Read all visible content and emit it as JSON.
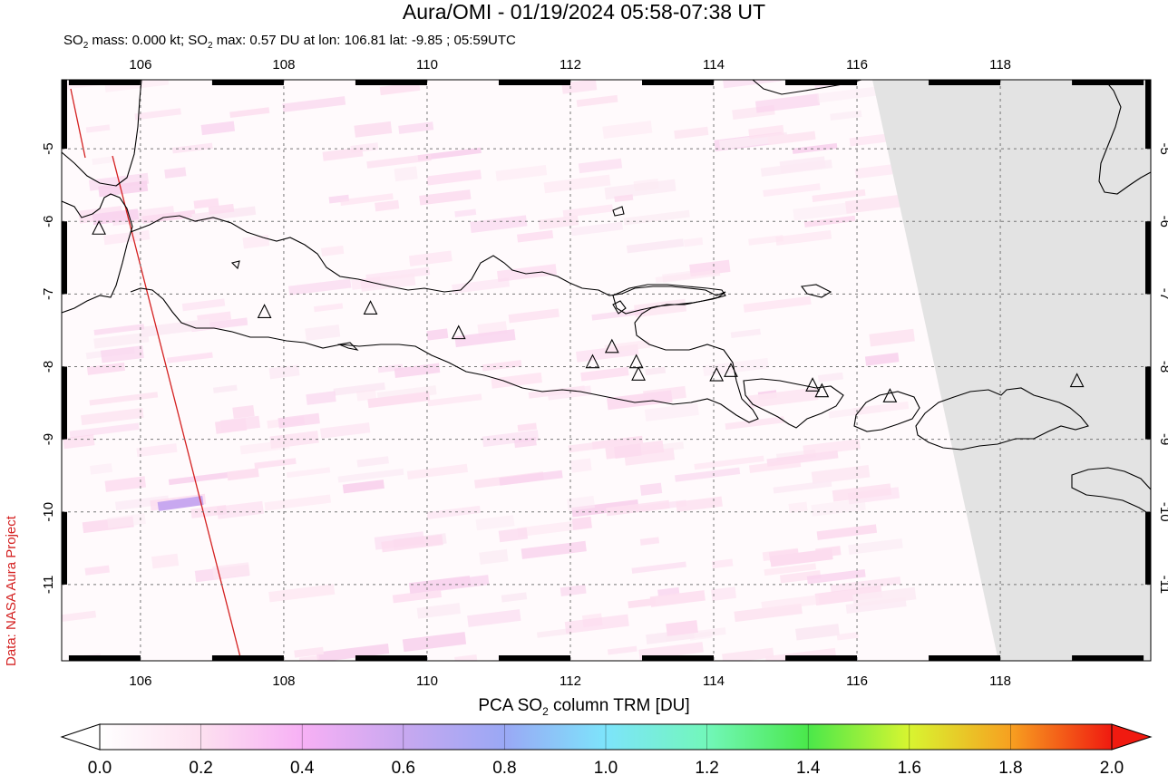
{
  "header": {
    "title": "Aura/OMI - 01/19/2024 05:58-07:38 UT",
    "subtitle_mass_prefix": "SO",
    "subtitle_mass_sub": "2",
    "subtitle_mass_text": " mass: 0.000 kt; SO",
    "subtitle_max_sub": "2",
    "subtitle_max_text": " max: 0.57 DU at lon: 106.81 lat: -9.85 ; 05:59UTC"
  },
  "credit": "Data: NASA Aura Project",
  "colorbar": {
    "title_prefix": "PCA SO",
    "title_sub": "2",
    "title_suffix": " column TRM [DU]",
    "ticks": [
      "0.0",
      "0.2",
      "0.4",
      "0.6",
      "0.8",
      "1.0",
      "1.2",
      "1.4",
      "1.6",
      "1.8",
      "2.0"
    ],
    "range": [
      0.0,
      2.0
    ],
    "colors": [
      "#ffffff",
      "#fde0f0",
      "#f7b0f5",
      "#c8a8f0",
      "#9aa8f5",
      "#7de4fb",
      "#72f7ba",
      "#4ae84a",
      "#d8f530",
      "#f7a020",
      "#f01a10"
    ]
  },
  "map": {
    "lon_ticks": [
      "106",
      "108",
      "110",
      "112",
      "114",
      "116",
      "118"
    ],
    "lon_values": [
      106,
      108,
      110,
      112,
      114,
      116,
      118
    ],
    "lat_ticks": [
      "-5",
      "-6",
      "-7",
      "-8",
      "-9",
      "-10",
      "-11"
    ],
    "lat_values": [
      -5,
      -6,
      -7,
      -8,
      -9,
      -10,
      -11
    ],
    "lon_range": [
      104.9,
      120.1
    ],
    "lat_range": [
      -12.05,
      -4.05
    ],
    "volcanoes": [
      {
        "lon": 105.42,
        "lat": -6.1
      },
      {
        "lon": 107.73,
        "lat": -7.25
      },
      {
        "lon": 109.21,
        "lat": -7.2
      },
      {
        "lon": 110.44,
        "lat": -7.54
      },
      {
        "lon": 112.31,
        "lat": -7.94
      },
      {
        "lon": 112.58,
        "lat": -7.73
      },
      {
        "lon": 112.92,
        "lat": -7.94
      },
      {
        "lon": 112.95,
        "lat": -8.11
      },
      {
        "lon": 114.04,
        "lat": -8.12
      },
      {
        "lon": 114.24,
        "lat": -8.06
      },
      {
        "lon": 115.38,
        "lat": -8.26
      },
      {
        "lon": 115.51,
        "lat": -8.34
      },
      {
        "lon": 116.46,
        "lat": -8.41
      },
      {
        "lon": 119.07,
        "lat": -8.2
      }
    ],
    "max_point": {
      "lon": 106.81,
      "lat": -9.85
    }
  }
}
